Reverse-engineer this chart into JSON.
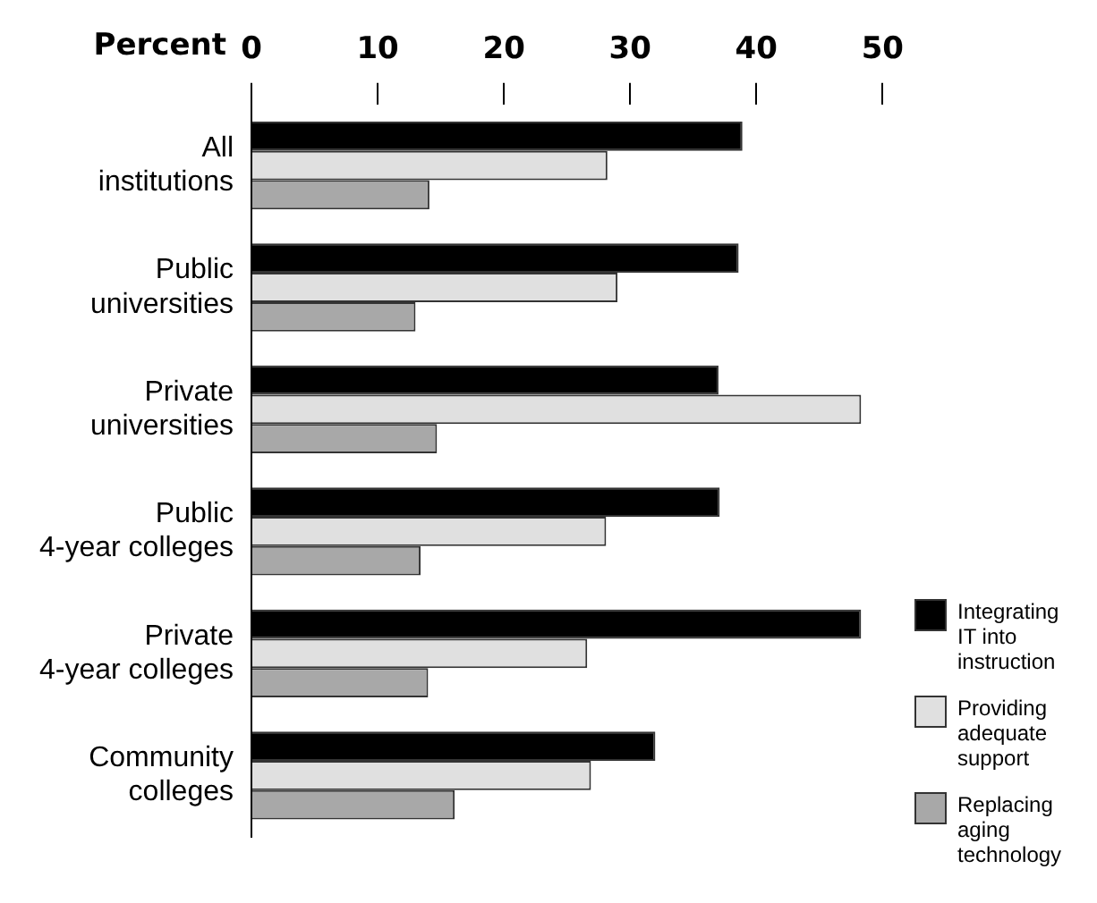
{
  "chart_data": {
    "type": "bar",
    "orientation": "horizontal",
    "xlabel": "Percent",
    "categories": [
      "All institutions",
      "Public universities",
      "Private universities",
      "Public 4-year colleges",
      "Private 4-year colleges",
      "Community colleges"
    ],
    "series": [
      {
        "name": "Integrating IT into instruction",
        "color": "#000000",
        "values": [
          38.9,
          38.6,
          37.0,
          37.1,
          48.3,
          32.0
        ]
      },
      {
        "name": "Providing adequate support",
        "color": "#e0e0e0",
        "values": [
          28.2,
          29.0,
          48.3,
          28.1,
          26.6,
          26.9
        ]
      },
      {
        "name": "Replacing aging technology",
        "color": "#a8a8a8",
        "values": [
          14.1,
          13.0,
          14.7,
          13.4,
          14.0,
          16.1
        ]
      }
    ],
    "xlim": [
      0,
      50
    ],
    "xticks": [
      0,
      10,
      20,
      30,
      40,
      50
    ],
    "grid": false,
    "legend": "bottom right"
  }
}
